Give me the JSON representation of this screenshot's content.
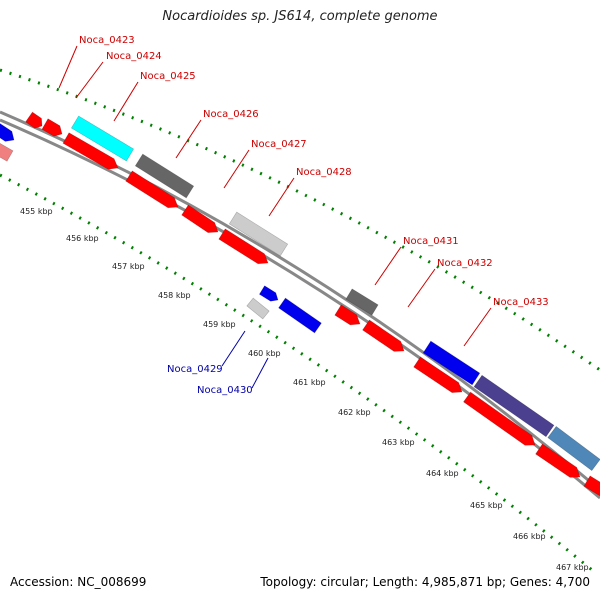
{
  "title": "Nocardioides sp. JS614, complete genome",
  "footer": {
    "accession": "Accession: NC_008699",
    "summary": "Topology: circular; Length: 4,985,871 bp; Genes: 4,700"
  },
  "colors": {
    "red": "#ff0000",
    "blue": "#0000ee",
    "cyan": "#00ffff",
    "dark_gray": "#666666",
    "light_gray": "#cccccc",
    "navy": "#4b3f8f",
    "steel_blue": "#4f87b8",
    "pink": "#f08080",
    "label_red": "#cc0000",
    "label_blue": "#0000aa",
    "tick_green": "#008000",
    "backbone": "#888888"
  },
  "ticks": [
    "455 kbp",
    "456 kbp",
    "457 kbp",
    "458 kbp",
    "459 kbp",
    "460 kbp",
    "461 kbp",
    "462 kbp",
    "463 kbp",
    "464 kbp",
    "465 kbp",
    "466 kbp",
    "467 kbp"
  ],
  "gene_labels": [
    {
      "name": "Noca_0423",
      "color": "label_red"
    },
    {
      "name": "Noca_0424",
      "color": "label_red"
    },
    {
      "name": "Noca_0425",
      "color": "label_red"
    },
    {
      "name": "Noca_0426",
      "color": "label_red"
    },
    {
      "name": "Noca_0427",
      "color": "label_red"
    },
    {
      "name": "Noca_0428",
      "color": "label_red"
    },
    {
      "name": "Noca_0429",
      "color": "label_blue"
    },
    {
      "name": "Noca_0430",
      "color": "label_blue"
    },
    {
      "name": "Noca_0431",
      "color": "label_red"
    },
    {
      "name": "Noca_0432",
      "color": "label_red"
    },
    {
      "name": "Noca_0433",
      "color": "label_red"
    }
  ]
}
